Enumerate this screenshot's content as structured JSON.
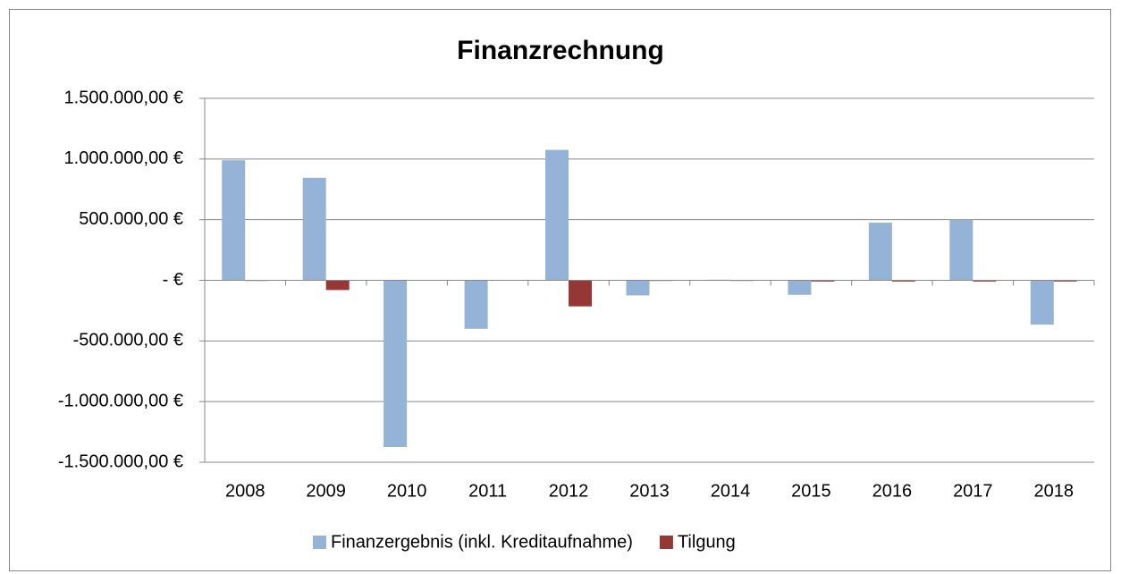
{
  "chart_data": {
    "type": "bar",
    "title": "Finanzrechnung",
    "categories": [
      "2008",
      "2009",
      "2010",
      "2011",
      "2012",
      "2013",
      "2014",
      "2015",
      "2016",
      "2017",
      "2018"
    ],
    "series": [
      {
        "name": "Finanzergebnis (inkl. Kreditaufnahme)",
        "color": "#95b3d7",
        "values": [
          990000,
          845000,
          -1375000,
          -400000,
          1075000,
          -125000,
          5000,
          -120000,
          475000,
          500000,
          -365000
        ]
      },
      {
        "name": "Tilgung",
        "color": "#953735",
        "values": [
          -5000,
          -80000,
          0,
          0,
          -215000,
          -5000,
          -5000,
          -10000,
          -10000,
          -10000,
          -10000
        ]
      }
    ],
    "ylim": [
      -1500000,
      1500000
    ],
    "yticks": [
      {
        "value": -1500000,
        "label": "-1.500.000,00 €"
      },
      {
        "value": -1000000,
        "label": "-1.000.000,00 €"
      },
      {
        "value": -500000,
        "label": "-500.000,00 €"
      },
      {
        "value": 0,
        "label": "- €"
      },
      {
        "value": 500000,
        "label": "500.000,00 €"
      },
      {
        "value": 1000000,
        "label": "1.000.000,00 €"
      },
      {
        "value": 1500000,
        "label": "1.500.000,00 €"
      }
    ],
    "grid": true,
    "legend": "bottom"
  }
}
